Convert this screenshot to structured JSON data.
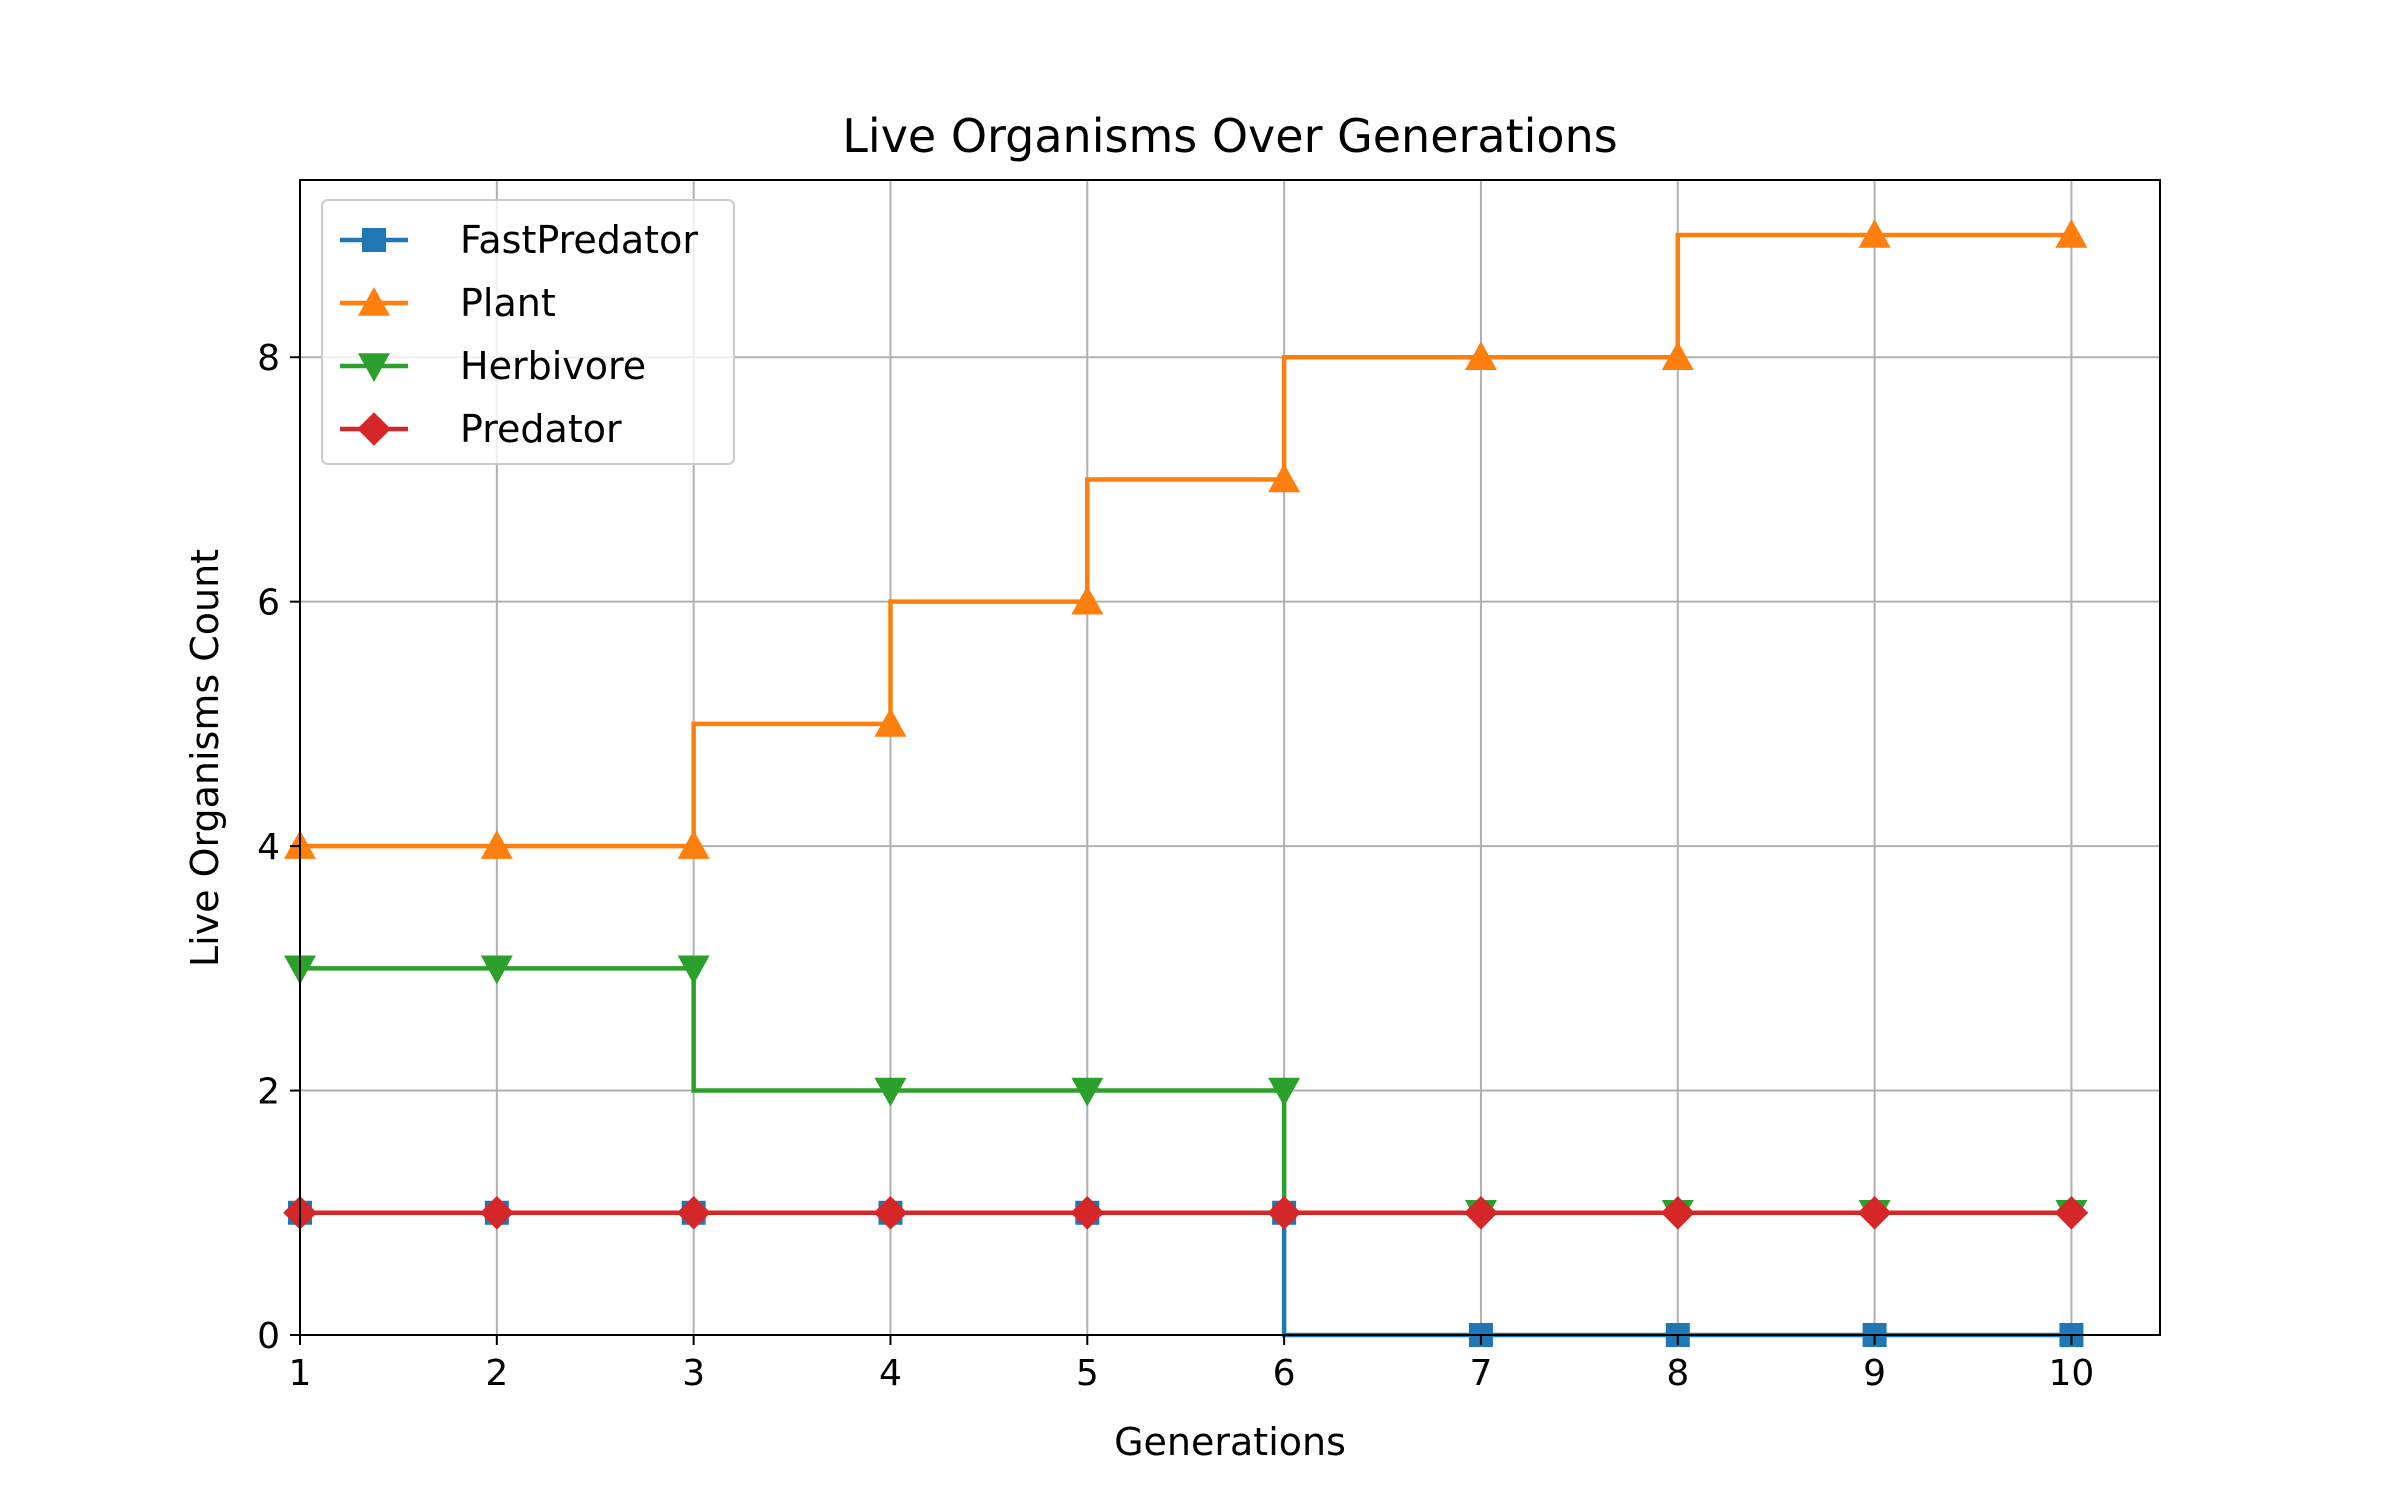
{
  "chart_data": {
    "type": "line",
    "step": "pre",
    "title": "Live Organisms Over Generations",
    "xlabel": "Generations",
    "ylabel": "Live Organisms Count",
    "x": [
      1,
      2,
      3,
      4,
      5,
      6,
      7,
      8,
      9,
      10
    ],
    "xlim": [
      1,
      10.45
    ],
    "ylim": [
      0,
      9.45
    ],
    "xticks": [
      "1",
      "2",
      "3",
      "4",
      "5",
      "6",
      "7",
      "8",
      "9",
      "10"
    ],
    "yticks": [
      "0",
      "2",
      "4",
      "6",
      "8"
    ],
    "grid": true,
    "legend_position": "upper-left",
    "series": [
      {
        "name": "FastPredator",
        "color": "#1f77b4",
        "marker": "square",
        "values": [
          1,
          1,
          1,
          1,
          1,
          1,
          0,
          0,
          0,
          0
        ]
      },
      {
        "name": "Plant",
        "color": "#ff7f0e",
        "marker": "triangle-up",
        "values": [
          4,
          4,
          4,
          5,
          6,
          7,
          8,
          8,
          9,
          9
        ]
      },
      {
        "name": "Herbivore",
        "color": "#2ca02c",
        "marker": "triangle-down",
        "values": [
          3,
          3,
          3,
          2,
          2,
          2,
          1,
          1,
          1,
          1
        ]
      },
      {
        "name": "Predator",
        "color": "#d62728",
        "marker": "diamond",
        "values": [
          1,
          1,
          1,
          1,
          1,
          1,
          1,
          1,
          1,
          1
        ]
      }
    ]
  }
}
